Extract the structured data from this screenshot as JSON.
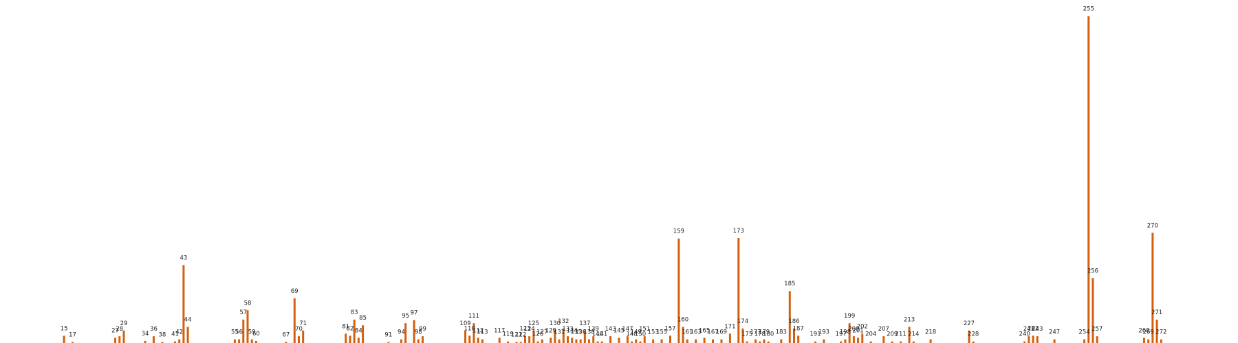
{
  "chart_data": {
    "type": "bar",
    "title": "",
    "xlabel": "",
    "ylabel": "",
    "xlim": [
      0,
      290
    ],
    "ylim": [
      0,
      660
    ],
    "grid": false,
    "legend": "none",
    "colors": {
      "bar": "#d35f0f",
      "label": "#222222",
      "background": "#ffffff"
    },
    "series": [
      {
        "points": [
          {
            "x": 15,
            "y": 14
          },
          {
            "x": 17,
            "y": 2
          },
          {
            "x": 27,
            "y": 10
          },
          {
            "x": 28,
            "y": 13
          },
          {
            "x": 29,
            "y": 24
          },
          {
            "x": 34,
            "y": 4
          },
          {
            "x": 36,
            "y": 13
          },
          {
            "x": 38,
            "y": 2
          },
          {
            "x": 41,
            "y": 3
          },
          {
            "x": 42,
            "y": 7
          },
          {
            "x": 43,
            "y": 150
          },
          {
            "x": 44,
            "y": 31
          },
          {
            "x": 55,
            "y": 7
          },
          {
            "x": 56,
            "y": 7
          },
          {
            "x": 57,
            "y": 45
          },
          {
            "x": 58,
            "y": 63
          },
          {
            "x": 59,
            "y": 7
          },
          {
            "x": 60,
            "y": 4
          },
          {
            "x": 67,
            "y": 2
          },
          {
            "x": 69,
            "y": 86
          },
          {
            "x": 70,
            "y": 13
          },
          {
            "x": 71,
            "y": 24
          },
          {
            "x": 81,
            "y": 18
          },
          {
            "x": 82,
            "y": 14
          },
          {
            "x": 83,
            "y": 45
          },
          {
            "x": 84,
            "y": 10
          },
          {
            "x": 85,
            "y": 34
          },
          {
            "x": 91,
            "y": 2
          },
          {
            "x": 94,
            "y": 7
          },
          {
            "x": 95,
            "y": 38
          },
          {
            "x": 97,
            "y": 44
          },
          {
            "x": 98,
            "y": 7
          },
          {
            "x": 99,
            "y": 13
          },
          {
            "x": 109,
            "y": 24
          },
          {
            "x": 110,
            "y": 14
          },
          {
            "x": 111,
            "y": 38
          },
          {
            "x": 112,
            "y": 10
          },
          {
            "x": 113,
            "y": 7
          },
          {
            "x": 117,
            "y": 10
          },
          {
            "x": 119,
            "y": 3
          },
          {
            "x": 121,
            "y": 2
          },
          {
            "x": 122,
            "y": 2
          },
          {
            "x": 123,
            "y": 14
          },
          {
            "x": 124,
            "y": 13
          },
          {
            "x": 125,
            "y": 24
          },
          {
            "x": 126,
            "y": 3
          },
          {
            "x": 127,
            "y": 7
          },
          {
            "x": 129,
            "y": 10
          },
          {
            "x": 130,
            "y": 24
          },
          {
            "x": 131,
            "y": 7
          },
          {
            "x": 132,
            "y": 28
          },
          {
            "x": 133,
            "y": 13
          },
          {
            "x": 134,
            "y": 10
          },
          {
            "x": 135,
            "y": 7
          },
          {
            "x": 136,
            "y": 7
          },
          {
            "x": 137,
            "y": 24
          },
          {
            "x": 138,
            "y": 7
          },
          {
            "x": 139,
            "y": 13
          },
          {
            "x": 140,
            "y": 3
          },
          {
            "x": 141,
            "y": 3
          },
          {
            "x": 143,
            "y": 13
          },
          {
            "x": 145,
            "y": 10
          },
          {
            "x": 147,
            "y": 13
          },
          {
            "x": 148,
            "y": 3
          },
          {
            "x": 149,
            "y": 7
          },
          {
            "x": 150,
            "y": 3
          },
          {
            "x": 151,
            "y": 13
          },
          {
            "x": 153,
            "y": 7
          },
          {
            "x": 155,
            "y": 7
          },
          {
            "x": 157,
            "y": 14
          },
          {
            "x": 159,
            "y": 201
          },
          {
            "x": 160,
            "y": 31
          },
          {
            "x": 161,
            "y": 7
          },
          {
            "x": 163,
            "y": 7
          },
          {
            "x": 165,
            "y": 10
          },
          {
            "x": 167,
            "y": 7
          },
          {
            "x": 169,
            "y": 7
          },
          {
            "x": 171,
            "y": 18
          },
          {
            "x": 173,
            "y": 202
          },
          {
            "x": 174,
            "y": 28
          },
          {
            "x": 175,
            "y": 3
          },
          {
            "x": 177,
            "y": 7
          },
          {
            "x": 178,
            "y": 3
          },
          {
            "x": 179,
            "y": 7
          },
          {
            "x": 180,
            "y": 3
          },
          {
            "x": 183,
            "y": 7
          },
          {
            "x": 185,
            "y": 100
          },
          {
            "x": 186,
            "y": 28
          },
          {
            "x": 187,
            "y": 14
          },
          {
            "x": 191,
            "y": 3
          },
          {
            "x": 193,
            "y": 7
          },
          {
            "x": 197,
            "y": 3
          },
          {
            "x": 198,
            "y": 7
          },
          {
            "x": 199,
            "y": 38
          },
          {
            "x": 200,
            "y": 13
          },
          {
            "x": 201,
            "y": 10
          },
          {
            "x": 202,
            "y": 18
          },
          {
            "x": 204,
            "y": 3
          },
          {
            "x": 207,
            "y": 13
          },
          {
            "x": 209,
            "y": 3
          },
          {
            "x": 211,
            "y": 3
          },
          {
            "x": 213,
            "y": 31
          },
          {
            "x": 214,
            "y": 3
          },
          {
            "x": 218,
            "y": 7
          },
          {
            "x": 227,
            "y": 24
          },
          {
            "x": 228,
            "y": 3
          },
          {
            "x": 240,
            "y": 3
          },
          {
            "x": 241,
            "y": 13
          },
          {
            "x": 242,
            "y": 14
          },
          {
            "x": 243,
            "y": 13
          },
          {
            "x": 247,
            "y": 7
          },
          {
            "x": 254,
            "y": 7
          },
          {
            "x": 255,
            "y": 629
          },
          {
            "x": 256,
            "y": 125
          },
          {
            "x": 257,
            "y": 13
          },
          {
            "x": 268,
            "y": 10
          },
          {
            "x": 269,
            "y": 7
          },
          {
            "x": 270,
            "y": 212
          },
          {
            "x": 271,
            "y": 45
          },
          {
            "x": 272,
            "y": 7
          }
        ]
      }
    ]
  }
}
